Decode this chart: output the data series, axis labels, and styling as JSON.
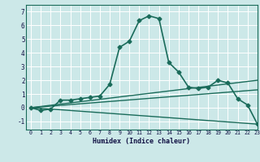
{
  "title": "",
  "xlabel": "Humidex (Indice chaleur)",
  "xlim": [
    -0.5,
    23
  ],
  "ylim": [
    -1.6,
    7.5
  ],
  "yticks": [
    -1,
    0,
    1,
    2,
    3,
    4,
    5,
    6,
    7
  ],
  "xticks": [
    0,
    1,
    2,
    3,
    4,
    5,
    6,
    7,
    8,
    9,
    10,
    11,
    12,
    13,
    14,
    15,
    16,
    17,
    18,
    19,
    20,
    21,
    22,
    23
  ],
  "bg_color": "#cce8e8",
  "grid_color": "#ffffff",
  "line_color": "#1a6b5a",
  "lines": [
    {
      "x": [
        0,
        1,
        2,
        3,
        4,
        5,
        6,
        7,
        8,
        9,
        10,
        11,
        12,
        13,
        14,
        15,
        16,
        17,
        18,
        19,
        20,
        21,
        22,
        23
      ],
      "y": [
        0,
        -0.2,
        -0.1,
        0.55,
        0.55,
        0.65,
        0.75,
        0.85,
        1.7,
        4.4,
        4.85,
        6.35,
        6.7,
        6.5,
        3.3,
        2.6,
        1.5,
        1.4,
        1.5,
        2.0,
        1.8,
        0.65,
        0.2,
        -1.2
      ],
      "marker": "D",
      "markersize": 2.5,
      "lw": 1.2
    },
    {
      "x": [
        0,
        2,
        23
      ],
      "y": [
        0,
        -0.1,
        -1.2
      ],
      "marker": null,
      "markersize": 0,
      "lw": 1.0
    },
    {
      "x": [
        0,
        23
      ],
      "y": [
        0,
        1.3
      ],
      "marker": null,
      "markersize": 0,
      "lw": 1.0
    },
    {
      "x": [
        0,
        23
      ],
      "y": [
        0,
        2.0
      ],
      "marker": null,
      "markersize": 0,
      "lw": 1.0
    }
  ]
}
